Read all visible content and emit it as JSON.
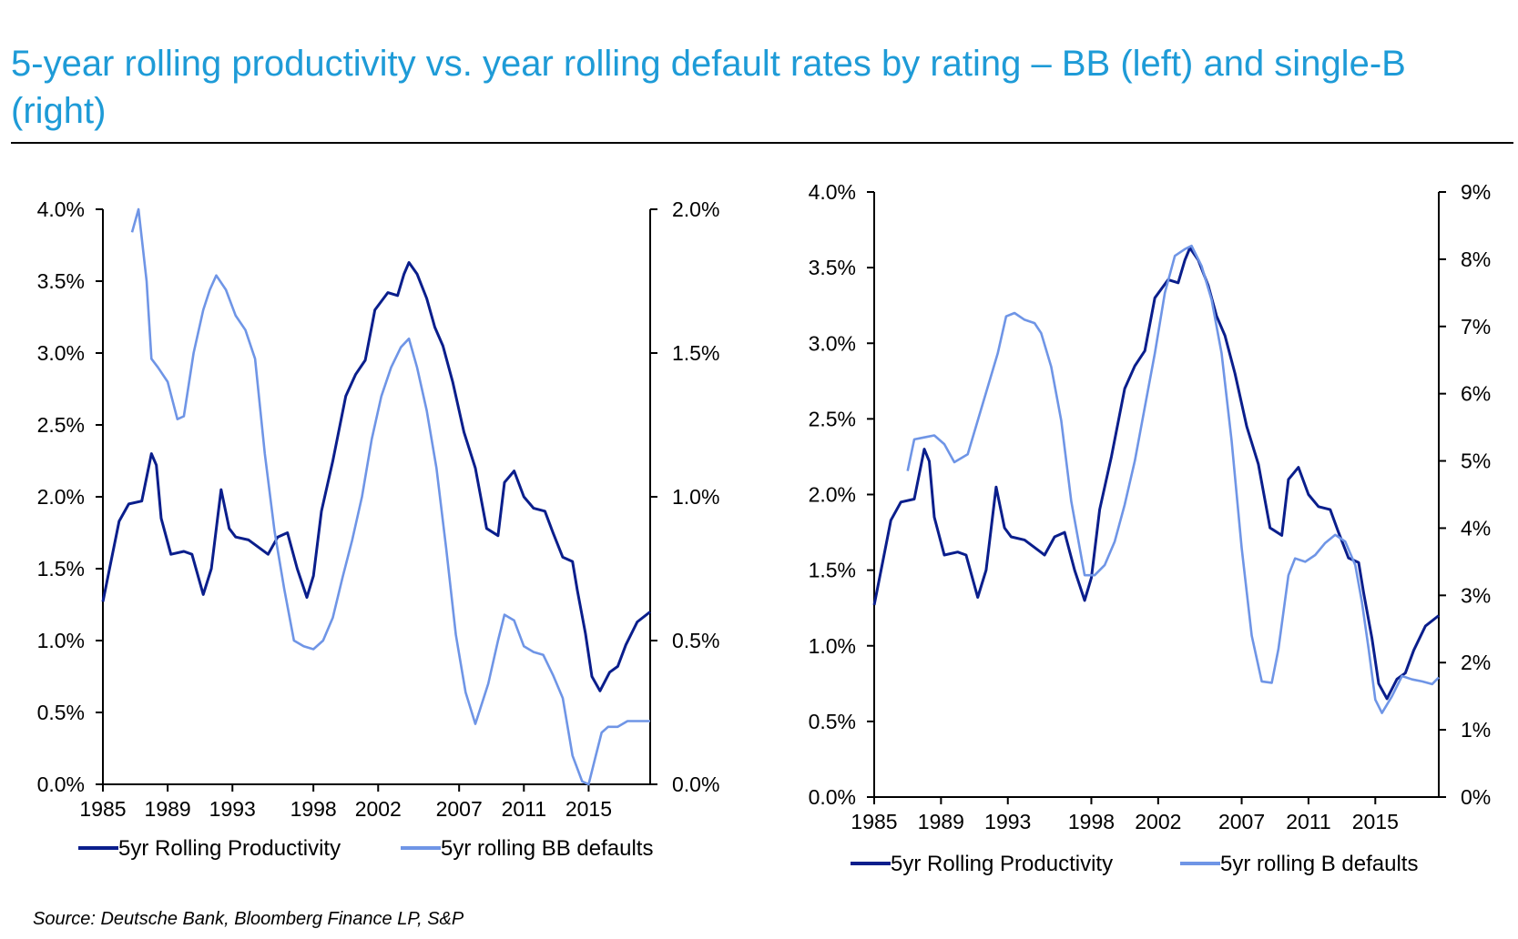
{
  "title": "5-year rolling productivity vs. year rolling default rates by rating – BB (left) and single-B (right)",
  "source": "Source: Deutsche Bank, Bloomberg Finance LP, S&P",
  "colors": {
    "title": "#1e9bd7",
    "productivity": "#0a1e8c",
    "defaults": "#6f95e6",
    "axis": "#000000"
  },
  "chart_data": [
    {
      "type": "line",
      "xlim": [
        1985,
        2018.8
      ],
      "x_ticks": [
        "1985",
        "1989",
        "1993",
        "1998",
        "2002",
        "2007",
        "2011",
        "2015"
      ],
      "ylim_left": [
        0,
        4
      ],
      "ylim_right": [
        0,
        2
      ],
      "y_ticks_left": [
        "0.0%",
        "0.5%",
        "1.0%",
        "1.5%",
        "2.0%",
        "2.5%",
        "3.0%",
        "3.5%",
        "4.0%"
      ],
      "y_ticks_right": [
        "0.0%",
        "0.5%",
        "1.0%",
        "1.5%",
        "2.0%"
      ],
      "series": [
        {
          "name": "5yr Rolling Productivity",
          "axis": "left",
          "color": "#0a1e8c",
          "x": [
            1985.0,
            1985.5,
            1986.0,
            1986.6,
            1987.4,
            1988.0,
            1988.3,
            1988.6,
            1989.2,
            1990.0,
            1990.5,
            1991.2,
            1991.7,
            1992.3,
            1992.8,
            1993.2,
            1994.0,
            1994.6,
            1995.2,
            1995.8,
            1996.4,
            1997.0,
            1997.6,
            1998.0,
            1998.5,
            1999.2,
            2000.0,
            2000.6,
            2001.2,
            2001.8,
            2002.6,
            2003.2,
            2003.6,
            2003.9,
            2004.4,
            2005.0,
            2005.5,
            2006.0,
            2006.6,
            2007.3,
            2008.0,
            2008.7,
            2009.4,
            2009.8,
            2010.4,
            2011.0,
            2011.6,
            2012.3,
            2012.8,
            2013.4,
            2014.0,
            2014.3,
            2014.8,
            2015.2,
            2015.7,
            2016.3,
            2016.8,
            2017.3,
            2018.0,
            2018.8
          ],
          "y": [
            1.27,
            1.55,
            1.83,
            1.95,
            1.97,
            2.3,
            2.22,
            1.85,
            1.6,
            1.62,
            1.6,
            1.32,
            1.5,
            2.05,
            1.78,
            1.72,
            1.7,
            1.65,
            1.6,
            1.72,
            1.75,
            1.5,
            1.3,
            1.45,
            1.9,
            2.25,
            2.7,
            2.85,
            2.95,
            3.3,
            3.42,
            3.4,
            3.55,
            3.63,
            3.55,
            3.38,
            3.18,
            3.05,
            2.8,
            2.45,
            2.2,
            1.78,
            1.73,
            2.1,
            2.18,
            2.0,
            1.92,
            1.9,
            1.75,
            1.58,
            1.55,
            1.35,
            1.05,
            0.75,
            0.65,
            0.78,
            0.82,
            0.97,
            1.13,
            1.2
          ]
        },
        {
          "name": "5yr rolling BB defaults",
          "axis": "right",
          "color": "#6f95e6",
          "x": [
            1986.8,
            1987.2,
            1987.7,
            1988.0,
            1988.4,
            1989.0,
            1989.6,
            1990.0,
            1990.6,
            1991.2,
            1991.6,
            1992.0,
            1992.6,
            1993.2,
            1993.8,
            1994.4,
            1995.0,
            1995.6,
            1996.2,
            1996.8,
            1997.4,
            1998.0,
            1998.6,
            1999.2,
            1999.8,
            2000.4,
            2001.0,
            2001.6,
            2002.2,
            2002.8,
            2003.4,
            2003.9,
            2004.4,
            2005.0,
            2005.6,
            2006.2,
            2006.8,
            2007.4,
            2008.0,
            2008.8,
            2009.4,
            2009.8,
            2010.4,
            2011.0,
            2011.6,
            2012.2,
            2012.8,
            2013.4,
            2014.0,
            2014.6,
            2015.0,
            2015.4,
            2015.8,
            2016.2,
            2016.8,
            2017.4,
            2018.8
          ],
          "y": [
            1.92,
            2.0,
            1.75,
            1.48,
            1.45,
            1.4,
            1.27,
            1.28,
            1.5,
            1.65,
            1.72,
            1.77,
            1.72,
            1.63,
            1.58,
            1.48,
            1.15,
            0.88,
            0.68,
            0.5,
            0.48,
            0.47,
            0.5,
            0.58,
            0.72,
            0.85,
            1.0,
            1.2,
            1.35,
            1.45,
            1.52,
            1.55,
            1.45,
            1.3,
            1.1,
            0.82,
            0.52,
            0.32,
            0.21,
            0.35,
            0.5,
            0.59,
            0.57,
            0.48,
            0.46,
            0.45,
            0.38,
            0.3,
            0.1,
            0.01,
            0.0,
            0.09,
            0.18,
            0.2,
            0.2,
            0.22,
            0.22
          ]
        }
      ],
      "legend": [
        "5yr Rolling Productivity",
        "5yr rolling BB defaults"
      ],
      "legend_position": "bottom"
    },
    {
      "type": "line",
      "xlim": [
        1985,
        2018.8
      ],
      "x_ticks": [
        "1985",
        "1989",
        "1993",
        "1998",
        "2002",
        "2007",
        "2011",
        "2015"
      ],
      "ylim_left": [
        0,
        4
      ],
      "ylim_right": [
        0,
        9
      ],
      "y_ticks_left": [
        "0.0%",
        "0.5%",
        "1.0%",
        "1.5%",
        "2.0%",
        "2.5%",
        "3.0%",
        "3.5%",
        "4.0%"
      ],
      "y_ticks_right": [
        "0%",
        "1%",
        "2%",
        "3%",
        "4%",
        "5%",
        "6%",
        "7%",
        "8%",
        "9%"
      ],
      "series": [
        {
          "name": "5yr Rolling Productivity",
          "axis": "left",
          "color": "#0a1e8c",
          "x": [
            1985.0,
            1985.5,
            1986.0,
            1986.6,
            1987.4,
            1988.0,
            1988.3,
            1988.6,
            1989.2,
            1990.0,
            1990.5,
            1991.2,
            1991.7,
            1992.3,
            1992.8,
            1993.2,
            1994.0,
            1994.6,
            1995.2,
            1995.8,
            1996.4,
            1997.0,
            1997.6,
            1998.0,
            1998.5,
            1999.2,
            2000.0,
            2000.6,
            2001.2,
            2001.8,
            2002.6,
            2003.2,
            2003.6,
            2003.9,
            2004.4,
            2005.0,
            2005.5,
            2006.0,
            2006.6,
            2007.3,
            2008.0,
            2008.7,
            2009.4,
            2009.8,
            2010.4,
            2011.0,
            2011.6,
            2012.3,
            2012.8,
            2013.4,
            2014.0,
            2014.3,
            2014.8,
            2015.2,
            2015.7,
            2016.3,
            2016.8,
            2017.3,
            2018.0,
            2018.8
          ],
          "y": [
            1.27,
            1.55,
            1.83,
            1.95,
            1.97,
            2.3,
            2.22,
            1.85,
            1.6,
            1.62,
            1.6,
            1.32,
            1.5,
            2.05,
            1.78,
            1.72,
            1.7,
            1.65,
            1.6,
            1.72,
            1.75,
            1.5,
            1.3,
            1.45,
            1.9,
            2.25,
            2.7,
            2.85,
            2.95,
            3.3,
            3.42,
            3.4,
            3.55,
            3.63,
            3.55,
            3.38,
            3.18,
            3.05,
            2.8,
            2.45,
            2.2,
            1.78,
            1.73,
            2.1,
            2.18,
            2.0,
            1.92,
            1.9,
            1.75,
            1.58,
            1.55,
            1.35,
            1.05,
            0.75,
            0.65,
            0.78,
            0.82,
            0.97,
            1.13,
            1.2
          ]
        },
        {
          "name": "5yr rolling B defaults",
          "axis": "right",
          "color": "#6f95e6",
          "x": [
            1987.0,
            1987.4,
            1988.0,
            1988.6,
            1989.2,
            1989.8,
            1990.6,
            1991.2,
            1991.8,
            1992.4,
            1992.9,
            1993.4,
            1994.0,
            1994.6,
            1995.0,
            1995.6,
            1996.2,
            1996.8,
            1997.6,
            1998.2,
            1998.8,
            1999.4,
            2000.0,
            2000.6,
            2001.2,
            2001.8,
            2002.4,
            2003.0,
            2003.6,
            2004.0,
            2004.6,
            2005.2,
            2005.8,
            2006.4,
            2007.0,
            2007.6,
            2008.2,
            2008.8,
            2009.2,
            2009.8,
            2010.2,
            2010.8,
            2011.4,
            2012.0,
            2012.6,
            2013.2,
            2013.8,
            2014.2,
            2014.6,
            2015.0,
            2015.4,
            2016.0,
            2016.6,
            2017.2,
            2017.8,
            2018.4,
            2018.8
          ],
          "y": [
            4.85,
            5.32,
            5.35,
            5.38,
            5.25,
            4.98,
            5.1,
            5.6,
            6.1,
            6.6,
            7.15,
            7.2,
            7.1,
            7.05,
            6.9,
            6.4,
            5.6,
            4.4,
            3.3,
            3.3,
            3.45,
            3.8,
            4.35,
            5.0,
            5.8,
            6.6,
            7.5,
            8.05,
            8.15,
            8.2,
            7.9,
            7.4,
            6.6,
            5.3,
            3.7,
            2.4,
            1.72,
            1.7,
            2.2,
            3.3,
            3.55,
            3.5,
            3.6,
            3.78,
            3.9,
            3.8,
            3.45,
            2.9,
            2.2,
            1.45,
            1.25,
            1.5,
            1.8,
            1.75,
            1.72,
            1.68,
            1.78
          ]
        }
      ],
      "legend": [
        "5yr Rolling Productivity",
        "5yr rolling B defaults"
      ],
      "legend_position": "bottom"
    }
  ]
}
